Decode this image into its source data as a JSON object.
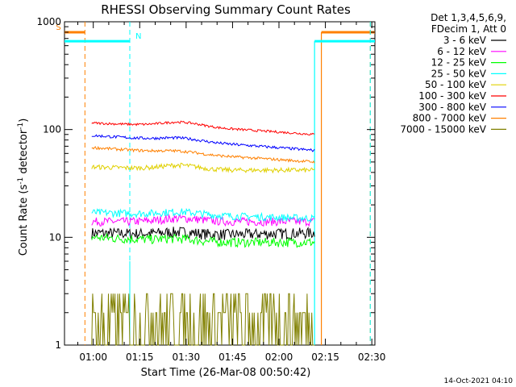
{
  "chart_data": {
    "type": "line",
    "title": "RHESSI Observing Summary Count Rates",
    "xlabel": "Start Time (26-Mar-08 00:50:42)",
    "ylabel_main": "Count Rate (s",
    "ylabel_sup1": "-1",
    "ylabel_mid": " detector",
    "ylabel_sup2": "-1",
    "ylabel_end": ")",
    "yscale": "log",
    "ylim": [
      1,
      1000
    ],
    "xlim_minutes": [
      50.7,
      151
    ],
    "x_ticks": [
      {
        "minute": 60,
        "label": "01:00"
      },
      {
        "minute": 75,
        "label": "01:15"
      },
      {
        "minute": 90,
        "label": "01:30"
      },
      {
        "minute": 105,
        "label": "01:45"
      },
      {
        "minute": 120,
        "label": "02:00"
      },
      {
        "minute": 135,
        "label": "02:15"
      },
      {
        "minute": 150,
        "label": "02:30"
      }
    ],
    "y_ticks": [
      {
        "value": 1,
        "label": "1"
      },
      {
        "value": 10,
        "label": "10"
      },
      {
        "value": 100,
        "label": "100"
      },
      {
        "value": 1000,
        "label": "1000"
      }
    ],
    "legend_header": [
      "Det 1,3,4,5,6,9,",
      "FDecim 1, Att 0"
    ],
    "legend_position": "top-right, outside plot",
    "flag_labels": {
      "saa": "S",
      "night": "N"
    },
    "flag_markers": [
      {
        "label": "S",
        "color": "#ff8000",
        "dashed_minute": 57.3,
        "level": 800
      },
      {
        "label": "N",
        "color": "#00ffff",
        "dashed_minute": 71.8,
        "level": 660
      }
    ],
    "data_start_minute": 59.5,
    "data_end_minute": 131.5,
    "series": [
      {
        "name": "3 - 6 keV",
        "color": "#000000",
        "start": 11,
        "mid": 10.5,
        "end": 11,
        "bump": 0.6,
        "noise": 0.12
      },
      {
        "name": "6 - 12 keV",
        "color": "#ff00ff",
        "start": 14,
        "mid": 14,
        "end": 14,
        "bump": 1,
        "noise": 0.09
      },
      {
        "name": "12 - 25 keV",
        "color": "#00ff00",
        "start": 10,
        "mid": 9,
        "end": 9,
        "bump": 0.5,
        "noise": 0.1
      },
      {
        "name": "25 - 50 keV",
        "color": "#00ffff",
        "start": 17,
        "mid": 16,
        "end": 15,
        "bump": 1,
        "noise": 0.08
      },
      {
        "name": "50 - 100 keV",
        "color": "#e0d000",
        "start": 45,
        "mid": 42,
        "end": 42,
        "bump": 4,
        "noise": 0.05
      },
      {
        "name": "100 - 300 keV",
        "color": "#ff0000",
        "start": 115,
        "mid": 105,
        "end": 90,
        "bump": 10,
        "noise": 0.025
      },
      {
        "name": "300 - 800 keV",
        "color": "#0000ff",
        "start": 88,
        "mid": 76,
        "end": 64,
        "bump": 5,
        "noise": 0.03
      },
      {
        "name": "800 - 7000 keV",
        "color": "#ff8000",
        "start": 68,
        "mid": 58,
        "end": 50,
        "bump": 3,
        "noise": 0.03
      },
      {
        "name": "7000 - 15000 keV",
        "color": "#808000",
        "start": 2,
        "mid": 2,
        "end": 2,
        "bump": 0,
        "noise": 0
      }
    ]
  },
  "footer_date": "14-Oct-2021 04:10"
}
